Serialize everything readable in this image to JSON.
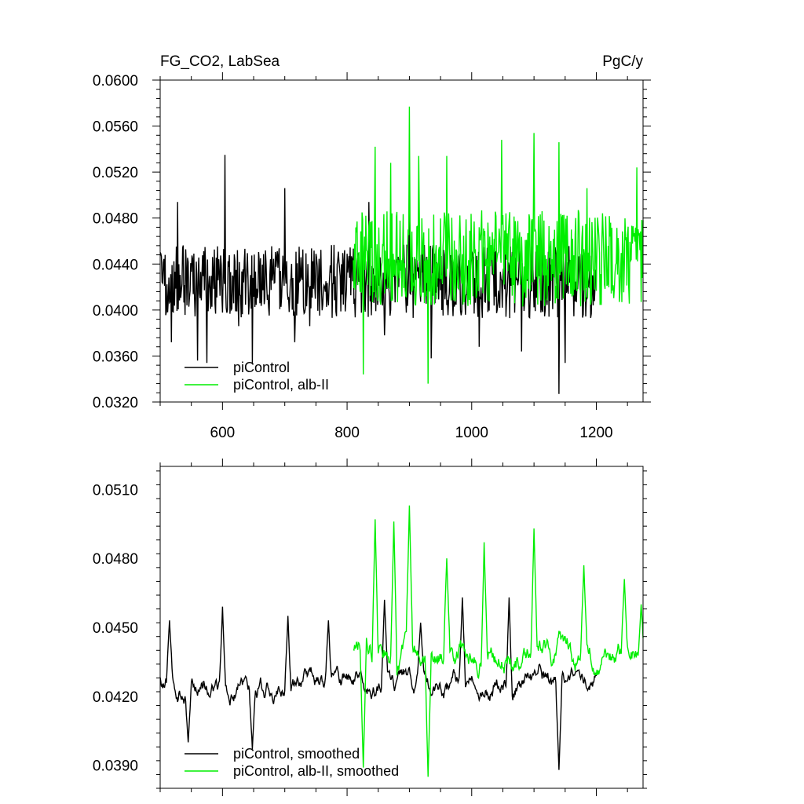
{
  "figure": {
    "title_left": "FG_CO2, LabSea",
    "title_right": "PgC/y"
  },
  "colors": {
    "piControl": "#000000",
    "alb_II": "#00ee00"
  },
  "chart_data": [
    {
      "type": "line",
      "panel": "top",
      "xlim": [
        500,
        1275
      ],
      "ylim": [
        0.032,
        0.06
      ],
      "x_major_ticks": [
        600,
        800,
        1000,
        1200
      ],
      "x_tick_labels": [
        "600",
        "800",
        "1000",
        "1200"
      ],
      "y_major_ticks": [
        0.032,
        0.036,
        0.04,
        0.044,
        0.048,
        0.052,
        0.056,
        0.06
      ],
      "y_tick_labels": [
        "0.0320",
        "0.0360",
        "0.0400",
        "0.0440",
        "0.0480",
        "0.0520",
        "0.0560",
        "0.0600"
      ],
      "legend_position": "bottom-left",
      "series": [
        {
          "name": "piControl",
          "color_key": "piControl",
          "x_start": 500,
          "x_end": 1200,
          "mean": 0.0425,
          "amplitude": 0.0032,
          "spikes": [
            [
              508,
              0.0448
            ],
            [
              518,
              0.0372
            ],
            [
              528,
              0.0494
            ],
            [
              560,
              0.0356
            ],
            [
              575,
              0.0354
            ],
            [
              604,
              0.0535
            ],
            [
              626,
              0.0386
            ],
            [
              648,
              0.0354
            ],
            [
              700,
              0.0506
            ],
            [
              716,
              0.0372
            ],
            [
              740,
              0.0386
            ],
            [
              835,
              0.0494
            ],
            [
              860,
              0.0378
            ],
            [
              900,
              0.0524
            ],
            [
              935,
              0.0358
            ],
            [
              1012,
              0.0368
            ],
            [
              1080,
              0.0364
            ],
            [
              1140,
              0.0327
            ],
            [
              1150,
              0.0354
            ]
          ]
        },
        {
          "name": "piControl, alb-II",
          "color_key": "alb_II",
          "x_start": 810,
          "x_end": 1275,
          "mean": 0.0445,
          "amplitude": 0.0042,
          "spikes": [
            [
              826,
              0.0344
            ],
            [
              845,
              0.0542
            ],
            [
              870,
              0.0528
            ],
            [
              900,
              0.0577
            ],
            [
              915,
              0.0534
            ],
            [
              930,
              0.0336
            ],
            [
              960,
              0.0534
            ],
            [
              1048,
              0.0548
            ],
            [
              1100,
              0.0554
            ],
            [
              1140,
              0.0546
            ],
            [
              1185,
              0.0506
            ],
            [
              1265,
              0.0524
            ]
          ]
        }
      ]
    },
    {
      "type": "line",
      "panel": "bottom",
      "xlim": [
        500,
        1275
      ],
      "ylim": [
        0.038,
        0.052
      ],
      "x_major_ticks": [
        600,
        800,
        1000,
        1200
      ],
      "y_major_ticks": [
        0.039,
        0.042,
        0.045,
        0.048,
        0.051
      ],
      "y_tick_labels": [
        "0.0390",
        "0.0420",
        "0.0450",
        "0.0480",
        "0.0510"
      ],
      "legend_position": "bottom-left",
      "series": [
        {
          "name": "piControl, smoothed",
          "color_key": "piControl",
          "x_start": 500,
          "x_end": 1200,
          "mean": 0.0426,
          "amplitude": 0.0014,
          "spikes": [
            [
              515,
              0.0453
            ],
            [
              545,
              0.04
            ],
            [
              600,
              0.0459
            ],
            [
              648,
              0.0397
            ],
            [
              705,
              0.0455
            ],
            [
              770,
              0.0453
            ],
            [
              860,
              0.0462
            ],
            [
              918,
              0.0452
            ],
            [
              985,
              0.0463
            ],
            [
              1060,
              0.0463
            ],
            [
              1140,
              0.0388
            ]
          ]
        },
        {
          "name": "piControl, alb-II, smoothed",
          "color_key": "alb_II",
          "x_start": 810,
          "x_end": 1275,
          "mean": 0.044,
          "amplitude": 0.0018,
          "spikes": [
            [
              826,
              0.0389
            ],
            [
              845,
              0.0497
            ],
            [
              875,
              0.0496
            ],
            [
              900,
              0.0503
            ],
            [
              930,
              0.0385
            ],
            [
              960,
              0.048
            ],
            [
              1020,
              0.0487
            ],
            [
              1100,
              0.0493
            ],
            [
              1180,
              0.0477
            ],
            [
              1245,
              0.0471
            ],
            [
              1272,
              0.046
            ]
          ]
        }
      ]
    }
  ]
}
